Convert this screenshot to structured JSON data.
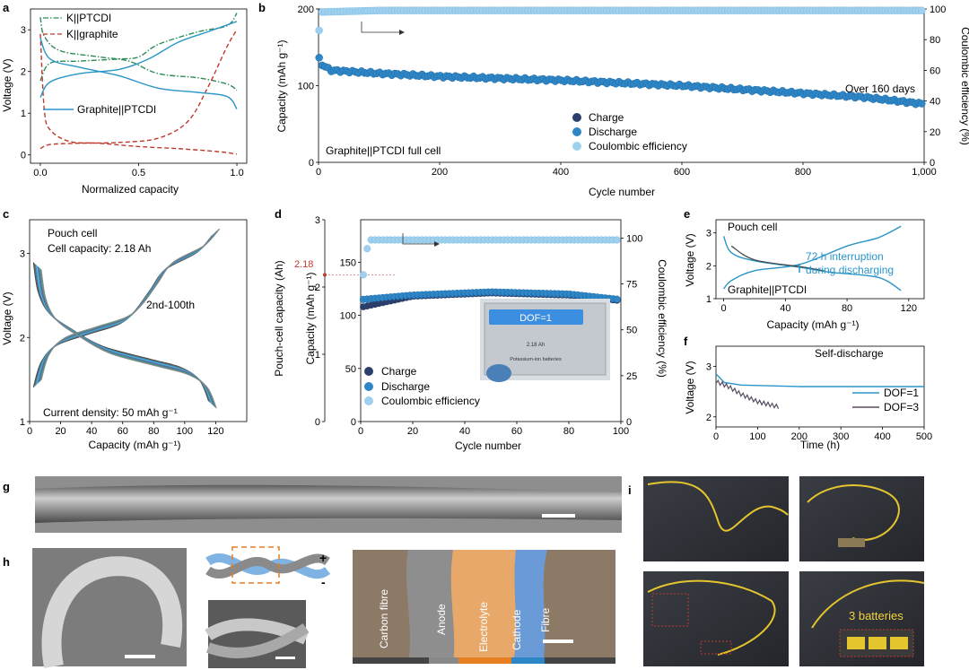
{
  "panels": {
    "a": "a",
    "b": "b",
    "c": "c",
    "d": "d",
    "e": "e",
    "f": "f",
    "g": "g",
    "h": "h",
    "i": "i"
  },
  "colors": {
    "ptcdi": "#2e8b57",
    "graphite": "#c0392b",
    "full": "#2a95c8",
    "charge": "#2c3e6b",
    "discharge": "#2f86c7",
    "ce": "#9fd0ee",
    "dof3": "#5a4a60"
  },
  "chart_data": [
    {
      "id": "a",
      "type": "line",
      "title": "",
      "xlabel": "Normalized capacity",
      "ylabel": "Voltage (V)",
      "xlim": [
        -0.05,
        1.05
      ],
      "ylim": [
        -0.2,
        3.5
      ],
      "xticks": [
        "0.0",
        "0.5",
        "1.0"
      ],
      "yticks": [
        "0",
        "1",
        "2",
        "3"
      ],
      "legend": [
        "K||PTCDI",
        "K||graphite"
      ],
      "annotations": [
        "Graphite||PTCDI"
      ],
      "series": [
        {
          "name": "K||PTCDI charge",
          "style": "dashdot",
          "color_key": "ptcdi",
          "points": [
            [
              0,
              1.78
            ],
            [
              0.05,
              2.2
            ],
            [
              0.2,
              2.25
            ],
            [
              0.4,
              2.3
            ],
            [
              0.5,
              2.35
            ],
            [
              0.6,
              2.65
            ],
            [
              0.8,
              2.95
            ],
            [
              0.95,
              3.1
            ],
            [
              1.0,
              3.4
            ]
          ]
        },
        {
          "name": "K||PTCDI discharge",
          "style": "dashdot",
          "color_key": "ptcdi",
          "points": [
            [
              0,
              3.3
            ],
            [
              0.02,
              2.85
            ],
            [
              0.1,
              2.5
            ],
            [
              0.3,
              2.35
            ],
            [
              0.45,
              2.25
            ],
            [
              0.6,
              1.95
            ],
            [
              0.8,
              1.85
            ],
            [
              0.95,
              1.7
            ],
            [
              1.0,
              1.55
            ]
          ]
        },
        {
          "name": "K||graphite discharge",
          "style": "dashed",
          "color_key": "graphite",
          "points": [
            [
              0,
              2.9
            ],
            [
              0.02,
              1.1
            ],
            [
              0.05,
              0.6
            ],
            [
              0.15,
              0.32
            ],
            [
              0.3,
              0.28
            ],
            [
              0.5,
              0.2
            ],
            [
              0.7,
              0.15
            ],
            [
              0.9,
              0.08
            ],
            [
              1.0,
              0.02
            ]
          ]
        },
        {
          "name": "K||graphite charge",
          "style": "dashed",
          "color_key": "graphite",
          "points": [
            [
              0,
              0.15
            ],
            [
              0.05,
              0.25
            ],
            [
              0.2,
              0.28
            ],
            [
              0.4,
              0.3
            ],
            [
              0.6,
              0.4
            ],
            [
              0.75,
              0.8
            ],
            [
              0.85,
              1.6
            ],
            [
              0.95,
              2.6
            ],
            [
              1.0,
              3.0
            ]
          ]
        },
        {
          "name": "Graphite||PTCDI charge",
          "style": "solid",
          "color_key": "full",
          "points": [
            [
              0,
              1.38
            ],
            [
              0.05,
              1.75
            ],
            [
              0.2,
              1.95
            ],
            [
              0.4,
              2.05
            ],
            [
              0.55,
              2.3
            ],
            [
              0.7,
              2.7
            ],
            [
              0.85,
              2.95
            ],
            [
              1.0,
              3.2
            ]
          ]
        },
        {
          "name": "Graphite||PTCDI discharge",
          "style": "solid",
          "color_key": "full",
          "points": [
            [
              0,
              2.8
            ],
            [
              0.05,
              2.3
            ],
            [
              0.2,
              2.1
            ],
            [
              0.4,
              1.9
            ],
            [
              0.6,
              1.6
            ],
            [
              0.8,
              1.5
            ],
            [
              0.95,
              1.4
            ],
            [
              1.0,
              1.1
            ]
          ]
        }
      ]
    },
    {
      "id": "b",
      "type": "scatter",
      "xlabel": "Cycle number",
      "ylabel": "Capacity (mAh g⁻¹)",
      "y2label": "Coulombic efficiency (%)",
      "xlim": [
        0,
        1000
      ],
      "ylim": [
        0,
        200
      ],
      "y2lim": [
        0,
        100
      ],
      "xticks": [
        "0",
        "200",
        "400",
        "600",
        "800",
        "1,000"
      ],
      "yticks": [
        "0",
        "100",
        "200"
      ],
      "y2ticks": [
        "0",
        "20",
        "40",
        "60",
        "80",
        "100"
      ],
      "legend": [
        "Charge",
        "Discharge",
        "Coulombic efficiency"
      ],
      "annotations": [
        "Over 160 days",
        "Graphite||PTCDI full cell"
      ],
      "series": [
        {
          "name": "Discharge",
          "color_key": "discharge",
          "points": [
            [
              1,
              135
            ],
            [
              5,
              128
            ],
            [
              20,
              120
            ],
            [
              100,
              116
            ],
            [
              200,
              112
            ],
            [
              400,
              107
            ],
            [
              600,
              100
            ],
            [
              800,
              90
            ],
            [
              900,
              85
            ],
            [
              1000,
              76
            ]
          ]
        },
        {
          "name": "Coulombic efficiency",
          "axis": "right",
          "color_key": "ce",
          "points": [
            [
              1,
              86
            ],
            [
              5,
              98
            ],
            [
              100,
              99
            ],
            [
              500,
              99
            ],
            [
              1000,
              99
            ]
          ]
        }
      ]
    },
    {
      "id": "c",
      "type": "line",
      "xlabel": "Capacity (mAh g⁻¹)",
      "ylabel": "Voltage (V)",
      "xlim": [
        0,
        140
      ],
      "ylim": [
        1,
        3.4
      ],
      "xticks": [
        "0",
        "20",
        "40",
        "60",
        "80",
        "100",
        "120"
      ],
      "yticks": [
        "1",
        "2",
        "3"
      ],
      "annotations": [
        "Pouch cell",
        "Cell capacity: 2.18 Ah",
        "2nd-100th",
        "Current density: 50 mAh g⁻¹"
      ],
      "series": [
        {
          "name": "charge",
          "points": [
            [
              5,
              1.45
            ],
            [
              10,
              1.75
            ],
            [
              20,
              1.95
            ],
            [
              40,
              2.08
            ],
            [
              60,
              2.2
            ],
            [
              70,
              2.35
            ],
            [
              80,
              2.6
            ],
            [
              90,
              2.85
            ],
            [
              110,
              3.05
            ],
            [
              120,
              3.25
            ]
          ]
        },
        {
          "name": "discharge",
          "points": [
            [
              5,
              2.85
            ],
            [
              8,
              2.5
            ],
            [
              15,
              2.25
            ],
            [
              30,
              2.05
            ],
            [
              50,
              1.85
            ],
            [
              80,
              1.7
            ],
            [
              100,
              1.6
            ],
            [
              112,
              1.45
            ],
            [
              118,
              1.2
            ]
          ]
        }
      ]
    },
    {
      "id": "d",
      "type": "scatter",
      "xlabel": "Cycle number",
      "ylabel": "Capacity (mAh g⁻¹)",
      "y2label": "Coulombic efficiency (%)",
      "y3label": "Pouch-cell capacity (Ah)",
      "xlim": [
        0,
        100
      ],
      "ylim": [
        0,
        190
      ],
      "y2lim": [
        0,
        110
      ],
      "xticks": [
        "0",
        "20",
        "40",
        "60",
        "80",
        "100"
      ],
      "yticks": [
        "0",
        "50",
        "100",
        "150"
      ],
      "y2ticks": [
        "0",
        "25",
        "50",
        "75",
        "100"
      ],
      "y3ticks": [
        "0",
        "1",
        "2",
        "3"
      ],
      "marker_label": "2.18",
      "legend": [
        "Charge",
        "Discharge",
        "Coulombic efficiency"
      ],
      "inset": {
        "badge": "DOF=1",
        "line1": "2.18 Ah",
        "line2": "Potassium-ion batteries"
      },
      "series": [
        {
          "name": "Charge",
          "color_key": "charge",
          "points": [
            [
              1,
              108
            ],
            [
              20,
              118
            ],
            [
              50,
              121
            ],
            [
              80,
              119
            ],
            [
              99,
              114
            ]
          ]
        },
        {
          "name": "Discharge",
          "color_key": "discharge",
          "points": [
            [
              1,
              115
            ],
            [
              20,
              119
            ],
            [
              50,
              122
            ],
            [
              80,
              120
            ],
            [
              99,
              115
            ]
          ]
        },
        {
          "name": "Coulombic efficiency",
          "axis": "right",
          "color_key": "ce",
          "points": [
            [
              1,
              80
            ],
            [
              3,
              99
            ],
            [
              50,
              99
            ],
            [
              100,
              99
            ]
          ]
        }
      ]
    },
    {
      "id": "e",
      "type": "line",
      "xlabel": "Capacity (mAh g⁻¹)",
      "ylabel": "Voltage (V)",
      "xlim": [
        -5,
        130
      ],
      "ylim": [
        1,
        3.4
      ],
      "xticks": [
        "0",
        "40",
        "80",
        "120"
      ],
      "yticks": [
        "1",
        "2",
        "3"
      ],
      "annotations": [
        "Pouch cell",
        "72 h interruption",
        "during discharging",
        "Graphite||PTCDI"
      ]
    },
    {
      "id": "f",
      "type": "line",
      "title": "Self-discharge",
      "xlabel": "Time (h)",
      "ylabel": "Voltage (V)",
      "xlim": [
        0,
        500
      ],
      "ylim": [
        1.8,
        3.4
      ],
      "xticks": [
        "0",
        "100",
        "200",
        "300",
        "400",
        "500"
      ],
      "yticks": [
        "2",
        "3"
      ],
      "legend": [
        "DOF=1",
        "DOF=3"
      ],
      "series": [
        {
          "name": "DOF=1",
          "color_key": "full",
          "points": [
            [
              0,
              2.85
            ],
            [
              20,
              2.68
            ],
            [
              60,
              2.63
            ],
            [
              200,
              2.6
            ],
            [
              500,
              2.6
            ]
          ]
        },
        {
          "name": "DOF=3",
          "color_key": "dof3",
          "points": [
            [
              0,
              2.7
            ],
            [
              30,
              2.6
            ],
            [
              60,
              2.45
            ],
            [
              100,
              2.3
            ],
            [
              150,
              2.2
            ]
          ]
        }
      ]
    }
  ],
  "photos": {
    "g": {
      "name": "sem-fibre-long"
    },
    "h": {
      "cross_section_labels": [
        "Carbon fibre",
        "Anode",
        "Electrolyte",
        "Cathode",
        "Fibre"
      ],
      "plus": "+",
      "minus": "-"
    },
    "i": {
      "label": "3 batteries"
    }
  }
}
